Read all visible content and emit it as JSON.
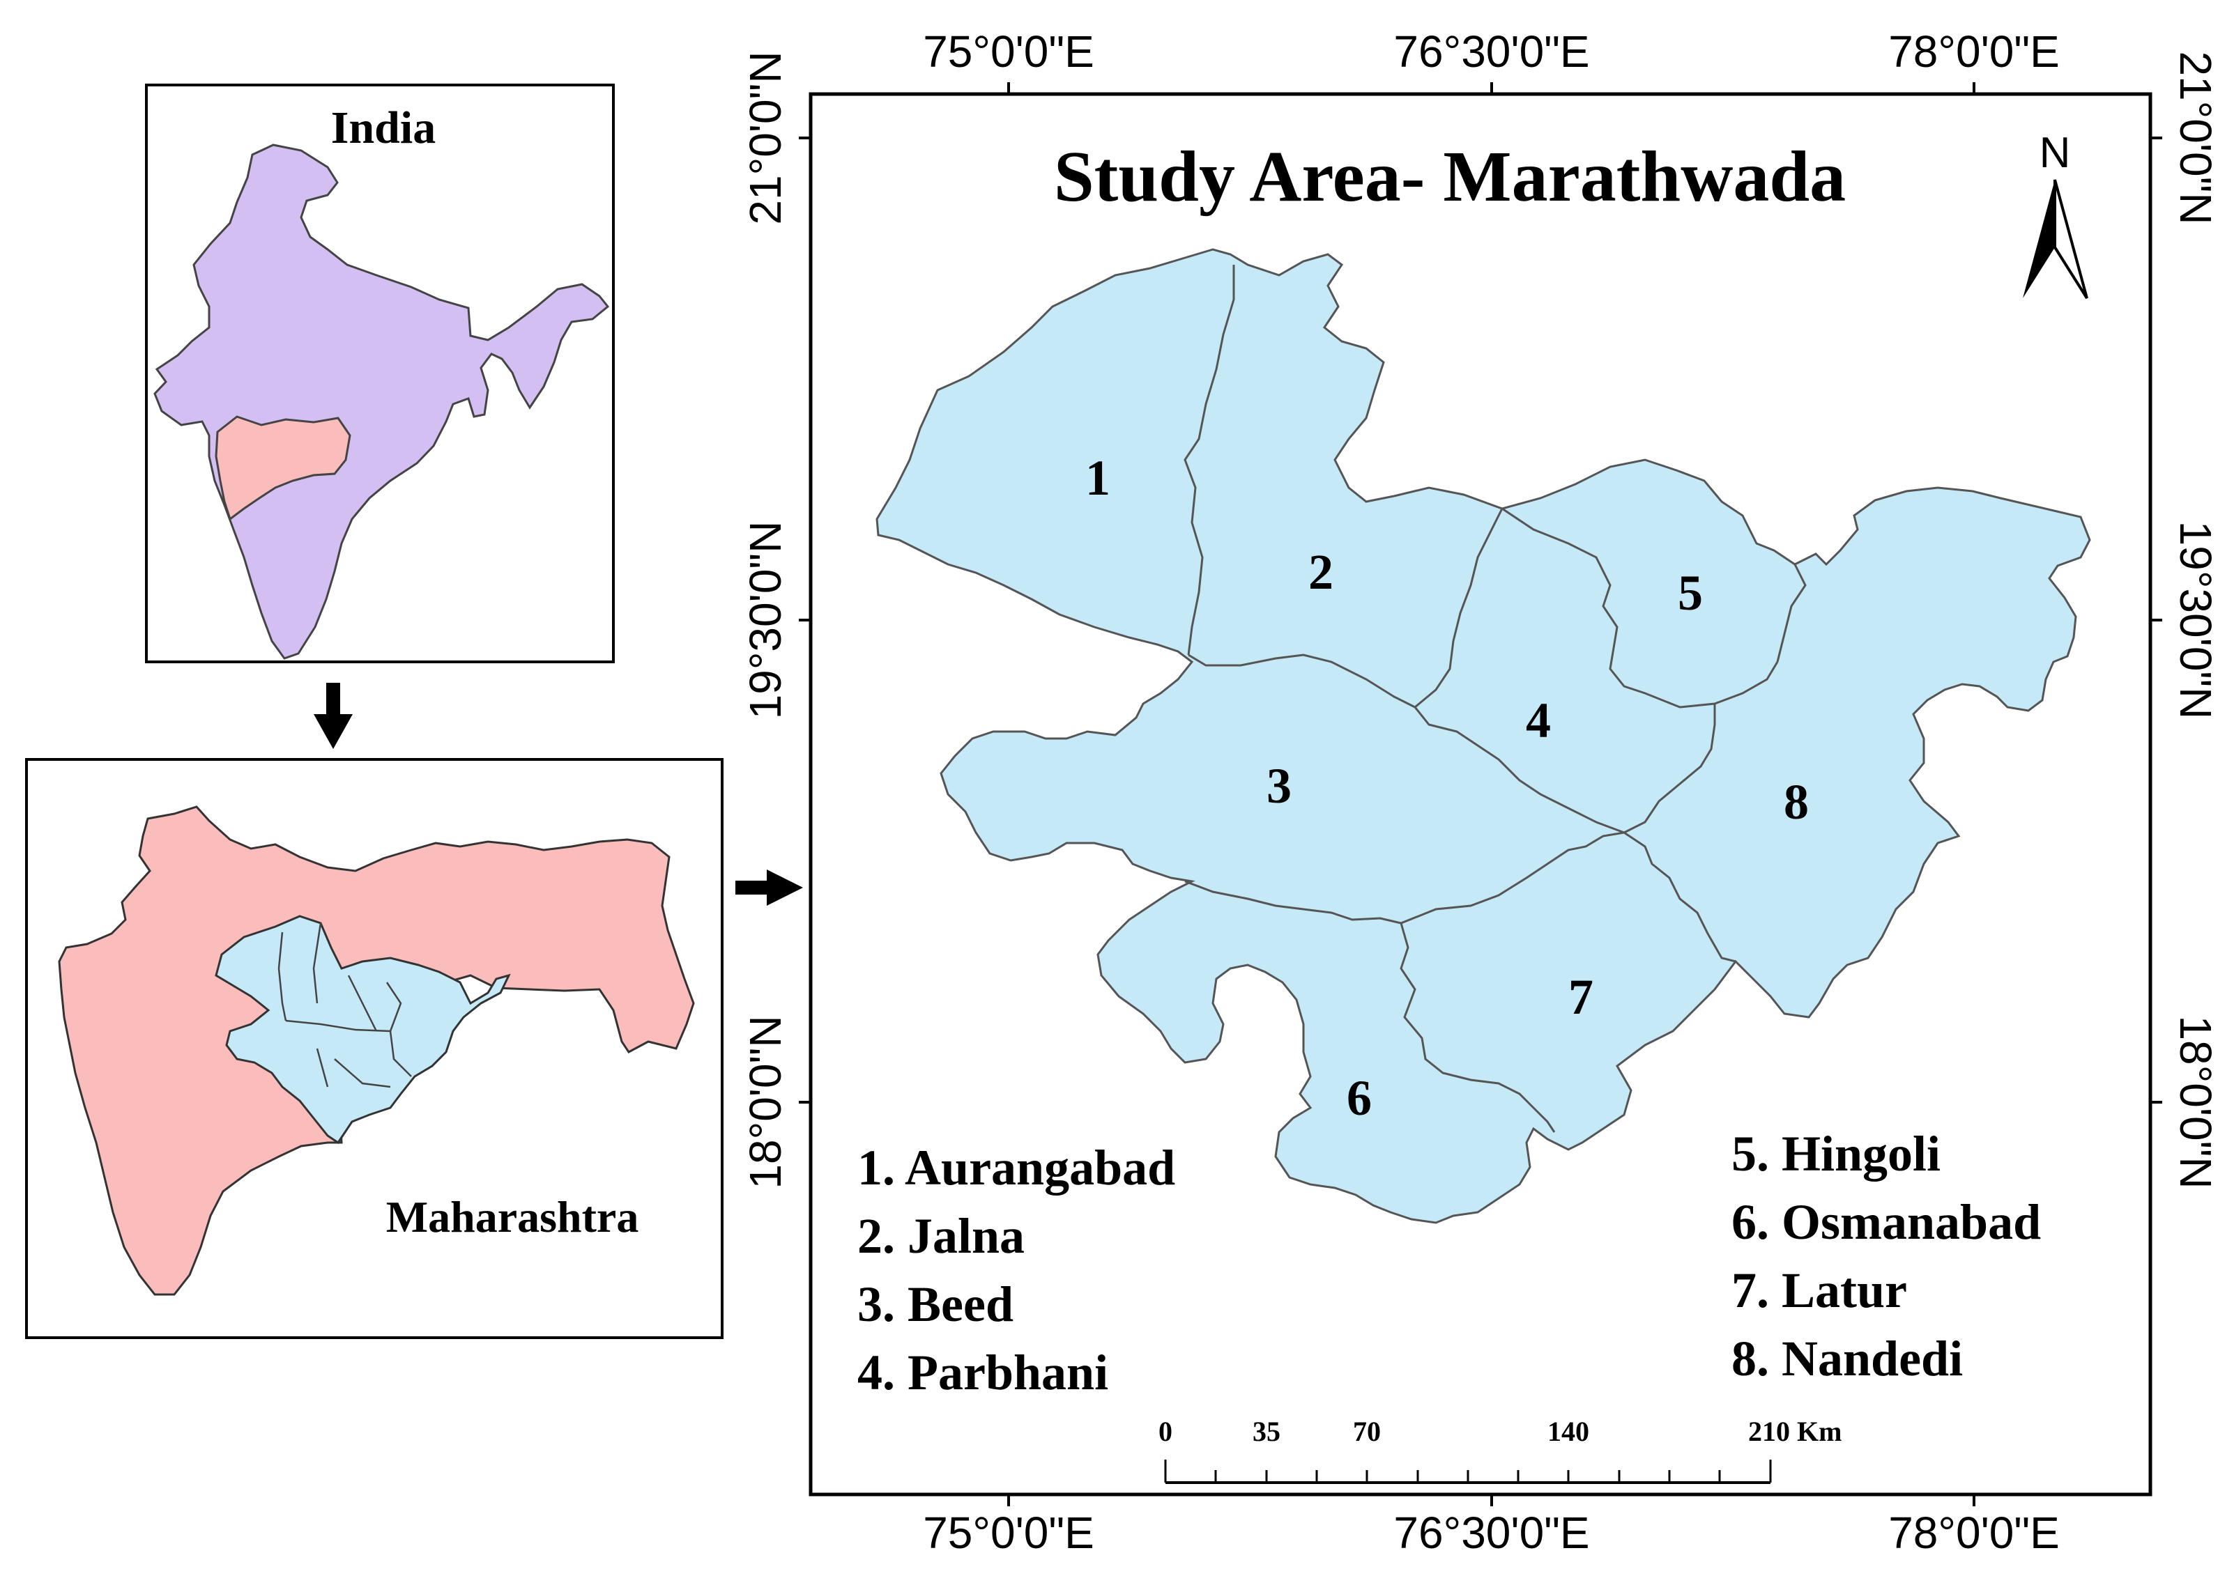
{
  "inset_india": {
    "label": "India"
  },
  "inset_maharashtra": {
    "label": "Maharashtra"
  },
  "main_map": {
    "title": "Study Area- Marathwada",
    "north_label": "N",
    "top_lon_labels": [
      "75°0'0\"E",
      "76°30'0\"E",
      "78°0'0\"E"
    ],
    "bottom_lon_labels": [
      "75°0'0\"E",
      "76°30'0\"E",
      "78°0'0\"E"
    ],
    "left_lat_labels": [
      "21°0'0\"N",
      "19°30'0\"N",
      "18°0'0\"N"
    ],
    "right_lat_labels": [
      "21°0'0\"N",
      "19°30'0\"N",
      "18°0'0\"N"
    ],
    "district_numbers": [
      "1",
      "2",
      "3",
      "4",
      "5",
      "6",
      "7",
      "8"
    ],
    "legend_left": [
      "1. Aurangabad",
      "2. Jalna",
      "3. Beed",
      "4. Parbhani"
    ],
    "legend_right": [
      "5. Hingoli",
      "6. Osmanabad",
      "7. Latur",
      "8. Nandedi"
    ],
    "scale_bar": {
      "ticks": [
        "0",
        "35",
        "70",
        "140",
        "210 Km"
      ]
    }
  },
  "colors": {
    "india_fill": "#d4bff2",
    "maharashtra_fill": "#fbbcbc",
    "marathwada_fill": "#c6e9f7",
    "outline": "#333333"
  }
}
